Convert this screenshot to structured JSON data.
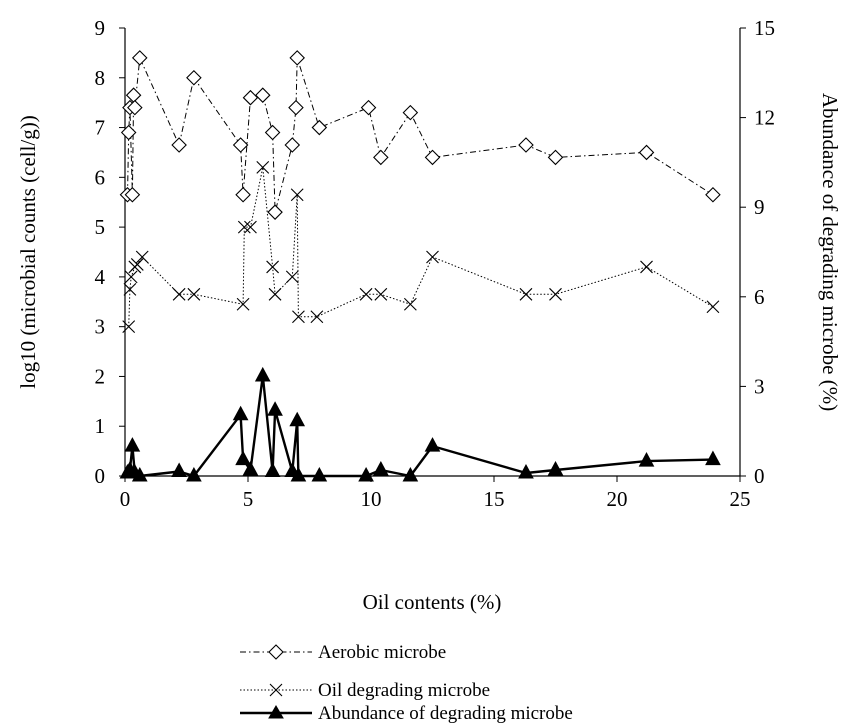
{
  "chart_data": {
    "type": "line",
    "xlabel": "Oil contents (%)",
    "ylabel": "log10 (microbial counts (cell/g))",
    "y2label": "Abundance of degrading microbe (%)",
    "xlim": [
      0,
      25
    ],
    "ylim": [
      0,
      9
    ],
    "y2lim": [
      0,
      15
    ],
    "xticks": [
      "0",
      "5",
      "10",
      "15",
      "20",
      "25"
    ],
    "yticks": [
      "0",
      "1",
      "2",
      "3",
      "4",
      "5",
      "6",
      "7",
      "8",
      "9"
    ],
    "y2ticks": [
      "0",
      "3",
      "6",
      "9",
      "12",
      "15"
    ],
    "grid": false,
    "legend_position": "bottom",
    "series": [
      {
        "name": "Aerobic microbe",
        "axis": "left",
        "marker": "diamond",
        "line_style": "dash-dot",
        "color": "#000000",
        "x": [
          0.1,
          0.15,
          0.2,
          0.3,
          0.35,
          0.4,
          0.6,
          2.2,
          2.8,
          4.7,
          4.8,
          5.1,
          5.6,
          6.0,
          6.1,
          6.8,
          6.95,
          7.0,
          7.9,
          9.9,
          10.4,
          11.6,
          12.5,
          16.3,
          17.5,
          21.2,
          23.9
        ],
        "y": [
          5.65,
          6.9,
          7.4,
          5.65,
          7.65,
          7.4,
          8.4,
          6.65,
          8.0,
          6.65,
          5.65,
          7.6,
          7.65,
          6.9,
          5.3,
          6.65,
          7.4,
          8.4,
          7.0,
          7.4,
          6.4,
          7.3,
          6.4,
          6.65,
          6.4,
          6.5,
          5.65
        ]
      },
      {
        "name": "Oil degrading microbe",
        "axis": "left",
        "marker": "x",
        "line_style": "dotted",
        "color": "#000000",
        "x": [
          0.15,
          0.2,
          0.25,
          0.4,
          0.5,
          0.7,
          2.2,
          2.8,
          4.8,
          4.85,
          5.1,
          5.6,
          6.0,
          6.1,
          6.8,
          7.0,
          7.05,
          7.8,
          9.8,
          10.4,
          11.6,
          12.5,
          16.3,
          17.5,
          21.2,
          23.9
        ],
        "y": [
          3.0,
          3.75,
          4.0,
          4.2,
          4.25,
          4.4,
          3.65,
          3.65,
          3.45,
          5.0,
          5.0,
          6.2,
          4.2,
          3.65,
          4.0,
          5.65,
          3.2,
          3.2,
          3.65,
          3.65,
          3.45,
          4.4,
          3.65,
          3.65,
          4.2,
          3.4
        ]
      },
      {
        "name": "Abundance of degrading microbe",
        "axis": "right",
        "marker": "filled-triangle",
        "line_style": "solid",
        "color": "#000000",
        "x": [
          0.1,
          0.2,
          0.3,
          0.4,
          0.6,
          2.2,
          2.8,
          4.7,
          4.8,
          5.1,
          5.6,
          6.0,
          6.1,
          6.8,
          7.0,
          7.05,
          7.9,
          9.8,
          10.4,
          11.6,
          12.5,
          16.3,
          17.5,
          21.2,
          23.9
        ],
        "y": [
          0.1,
          0.2,
          1.0,
          0.1,
          0.0,
          0.15,
          0.0,
          2.05,
          0.55,
          0.2,
          3.35,
          0.15,
          2.2,
          0.15,
          1.85,
          0.0,
          0.0,
          0.0,
          0.2,
          0.0,
          1.0,
          0.1,
          0.2,
          0.5,
          0.55
        ]
      }
    ]
  }
}
